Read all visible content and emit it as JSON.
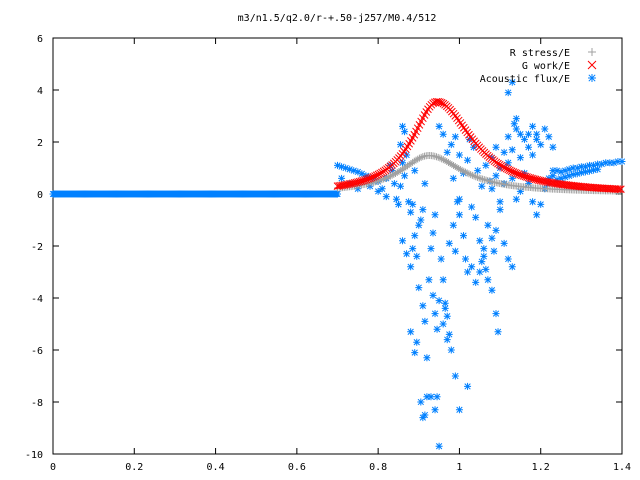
{
  "chart_data": {
    "type": "scatter",
    "title": "m3/n1.5/q2.0/r-+.50-j257/M0.4/512",
    "xlabel": "",
    "ylabel": "",
    "xlim": [
      0,
      1.4
    ],
    "ylim": [
      -10,
      6
    ],
    "x_ticks": [
      "0",
      "0.2",
      "0.4",
      "0.6",
      "0.8",
      "1",
      "1.2",
      "1.4"
    ],
    "y_ticks": [
      "6",
      "4",
      "2",
      "0",
      "-2",
      "-4",
      "-6",
      "-8",
      "-10"
    ],
    "grid": false,
    "legend_position": "top-right",
    "series": [
      {
        "name": "R stress/E",
        "marker": "plus",
        "color": "#a0a0a0",
        "profile": "peak",
        "range": [
          0.7,
          1.4
        ],
        "peak": {
          "x": 0.925,
          "y": 1.48,
          "width_left": 0.085,
          "width_right": 0.1,
          "base": 0.05
        }
      },
      {
        "name": "G work/E",
        "marker": "cross",
        "color": "#ff0000",
        "profile": "peak",
        "range": [
          0.7,
          1.4
        ],
        "peak": {
          "x": 0.945,
          "y": 3.55,
          "width_left": 0.075,
          "width_right": 0.105,
          "base": 0.0
        }
      },
      {
        "name": "Acoustic flux/E",
        "marker": "star",
        "color": "#0080ff",
        "baseline": {
          "range": [
            0.0,
            0.7
          ],
          "y": 0.0
        },
        "points": [
          [
            0.7,
            1.1
          ],
          [
            0.71,
            1.05
          ],
          [
            0.72,
            1.0
          ],
          [
            0.73,
            0.95
          ],
          [
            0.74,
            0.9
          ],
          [
            0.75,
            0.85
          ],
          [
            0.76,
            0.78
          ],
          [
            0.77,
            0.7
          ],
          [
            0.78,
            0.62
          ],
          [
            0.79,
            0.55
          ],
          [
            0.8,
            0.48
          ],
          [
            0.71,
            0.6
          ],
          [
            0.73,
            0.4
          ],
          [
            0.75,
            0.2
          ],
          [
            0.78,
            0.3
          ],
          [
            0.8,
            0.1
          ],
          [
            0.81,
            0.2
          ],
          [
            0.82,
            0.6
          ],
          [
            0.83,
            1.1
          ],
          [
            0.84,
            0.4
          ],
          [
            0.85,
            -0.4
          ],
          [
            0.86,
            1.2
          ],
          [
            0.82,
            -0.1
          ],
          [
            0.835,
            0.9
          ],
          [
            0.845,
            -0.2
          ],
          [
            0.855,
            0.3
          ],
          [
            0.865,
            0.7
          ],
          [
            0.855,
            1.9
          ],
          [
            0.86,
            2.6
          ],
          [
            0.865,
            2.4
          ],
          [
            0.87,
            1.5
          ],
          [
            0.875,
            -0.3
          ],
          [
            0.88,
            -0.7
          ],
          [
            0.885,
            -0.4
          ],
          [
            0.89,
            0.9
          ],
          [
            0.86,
            -1.8
          ],
          [
            0.87,
            -2.3
          ],
          [
            0.88,
            -2.8
          ],
          [
            0.885,
            -2.1
          ],
          [
            0.89,
            -1.6
          ],
          [
            0.895,
            -2.4
          ],
          [
            0.9,
            -1.2
          ],
          [
            0.88,
            -5.3
          ],
          [
            0.89,
            -6.1
          ],
          [
            0.895,
            -5.7
          ],
          [
            0.9,
            -3.6
          ],
          [
            0.905,
            -1.0
          ],
          [
            0.91,
            -0.6
          ],
          [
            0.915,
            0.4
          ],
          [
            0.91,
            -4.3
          ],
          [
            0.915,
            -4.9
          ],
          [
            0.92,
            -6.3
          ],
          [
            0.925,
            -3.3
          ],
          [
            0.93,
            -2.1
          ],
          [
            0.935,
            -1.5
          ],
          [
            0.94,
            -0.8
          ],
          [
            0.905,
            -8.0
          ],
          [
            0.91,
            -8.6
          ],
          [
            0.915,
            -8.5
          ],
          [
            0.92,
            -7.8
          ],
          [
            0.93,
            -7.8
          ],
          [
            0.94,
            -8.3
          ],
          [
            0.945,
            -7.8
          ],
          [
            0.95,
            -9.7
          ],
          [
            0.935,
            -3.9
          ],
          [
            0.94,
            -4.6
          ],
          [
            0.945,
            -5.2
          ],
          [
            0.95,
            -4.1
          ],
          [
            0.955,
            -2.5
          ],
          [
            0.96,
            -3.3
          ],
          [
            0.965,
            -4.4
          ],
          [
            0.97,
            -5.6
          ],
          [
            0.96,
            -5.0
          ],
          [
            0.965,
            -4.2
          ],
          [
            0.97,
            -4.7
          ],
          [
            0.975,
            -5.4
          ],
          [
            0.98,
            -6.0
          ],
          [
            0.99,
            -7.0
          ],
          [
            1.0,
            -8.3
          ],
          [
            1.02,
            -7.4
          ],
          [
            0.975,
            -1.9
          ],
          [
            0.985,
            -1.2
          ],
          [
            0.99,
            -2.2
          ],
          [
            1.0,
            -0.8
          ],
          [
            1.01,
            -1.6
          ],
          [
            1.015,
            -2.5
          ],
          [
            1.02,
            -3.0
          ],
          [
            1.03,
            -2.8
          ],
          [
            1.0,
            -0.2
          ],
          [
            1.01,
            0.8
          ],
          [
            1.02,
            1.3
          ],
          [
            1.03,
            -0.5
          ],
          [
            1.04,
            -0.9
          ],
          [
            1.05,
            -1.8
          ],
          [
            1.06,
            -2.4
          ],
          [
            1.065,
            -2.9
          ],
          [
            1.04,
            -3.4
          ],
          [
            1.05,
            -3.0
          ],
          [
            1.055,
            -2.6
          ],
          [
            1.06,
            -2.1
          ],
          [
            1.07,
            -3.3
          ],
          [
            1.08,
            -3.7
          ],
          [
            1.09,
            -4.6
          ],
          [
            1.095,
            -5.3
          ],
          [
            1.07,
            -1.2
          ],
          [
            1.08,
            -1.7
          ],
          [
            1.085,
            -2.2
          ],
          [
            1.09,
            -1.4
          ],
          [
            1.1,
            -0.6
          ],
          [
            1.11,
            -1.9
          ],
          [
            1.12,
            -2.5
          ],
          [
            1.13,
            -2.8
          ],
          [
            1.08,
            0.2
          ],
          [
            1.09,
            0.7
          ],
          [
            1.1,
            -0.3
          ],
          [
            1.11,
            0.4
          ],
          [
            1.12,
            1.2
          ],
          [
            1.13,
            0.6
          ],
          [
            1.14,
            -0.2
          ],
          [
            1.15,
            0.1
          ],
          [
            1.08,
            1.4
          ],
          [
            1.09,
            1.8
          ],
          [
            1.1,
            1.0
          ],
          [
            1.11,
            1.6
          ],
          [
            1.12,
            2.2
          ],
          [
            1.13,
            1.7
          ],
          [
            1.14,
            2.5
          ],
          [
            1.15,
            1.4
          ],
          [
            1.16,
            2.1
          ],
          [
            1.17,
            1.8
          ],
          [
            1.18,
            1.5
          ],
          [
            1.19,
            2.3
          ],
          [
            1.2,
            1.9
          ],
          [
            1.21,
            2.5
          ],
          [
            1.22,
            2.2
          ],
          [
            1.23,
            1.8
          ],
          [
            1.16,
            0.8
          ],
          [
            1.17,
            0.4
          ],
          [
            1.18,
            -0.3
          ],
          [
            1.19,
            -0.8
          ],
          [
            1.2,
            -0.4
          ],
          [
            1.21,
            0.2
          ],
          [
            1.22,
            0.6
          ],
          [
            1.23,
            0.9
          ],
          [
            1.13,
            4.3
          ],
          [
            1.12,
            3.9
          ],
          [
            1.14,
            2.9
          ],
          [
            1.135,
            2.7
          ],
          [
            1.15,
            2.3
          ],
          [
            1.17,
            2.3
          ],
          [
            1.18,
            2.6
          ],
          [
            1.19,
            2.1
          ],
          [
            1.22,
            0.4
          ],
          [
            1.23,
            0.7
          ],
          [
            1.24,
            0.9
          ],
          [
            1.25,
            0.85
          ],
          [
            1.26,
            0.9
          ],
          [
            1.27,
            0.95
          ],
          [
            1.28,
            1.0
          ],
          [
            1.29,
            1.0
          ],
          [
            1.3,
            1.05
          ],
          [
            1.31,
            1.05
          ],
          [
            1.32,
            1.1
          ],
          [
            1.33,
            1.1
          ],
          [
            1.34,
            1.15
          ],
          [
            1.35,
            1.15
          ],
          [
            1.36,
            1.2
          ],
          [
            1.37,
            1.2
          ],
          [
            1.38,
            1.2
          ],
          [
            1.39,
            1.25
          ],
          [
            1.4,
            1.25
          ],
          [
            1.24,
            0.55
          ],
          [
            1.25,
            0.6
          ],
          [
            1.26,
            0.65
          ],
          [
            1.27,
            0.7
          ],
          [
            1.28,
            0.75
          ],
          [
            1.29,
            0.78
          ],
          [
            1.3,
            0.82
          ],
          [
            1.31,
            0.85
          ],
          [
            1.32,
            0.88
          ],
          [
            1.33,
            0.92
          ],
          [
            1.34,
            0.95
          ],
          [
            0.95,
            2.6
          ],
          [
            0.96,
            2.3
          ],
          [
            0.97,
            1.6
          ],
          [
            0.98,
            1.9
          ],
          [
            0.99,
            2.2
          ],
          [
            1.0,
            1.5
          ],
          [
            0.985,
            0.6
          ],
          [
            0.995,
            -0.3
          ],
          [
            1.025,
            2.1
          ],
          [
            1.035,
            1.8
          ],
          [
            1.045,
            0.9
          ],
          [
            1.055,
            0.3
          ],
          [
            1.065,
            1.1
          ],
          [
            1.075,
            0.5
          ]
        ]
      }
    ]
  }
}
